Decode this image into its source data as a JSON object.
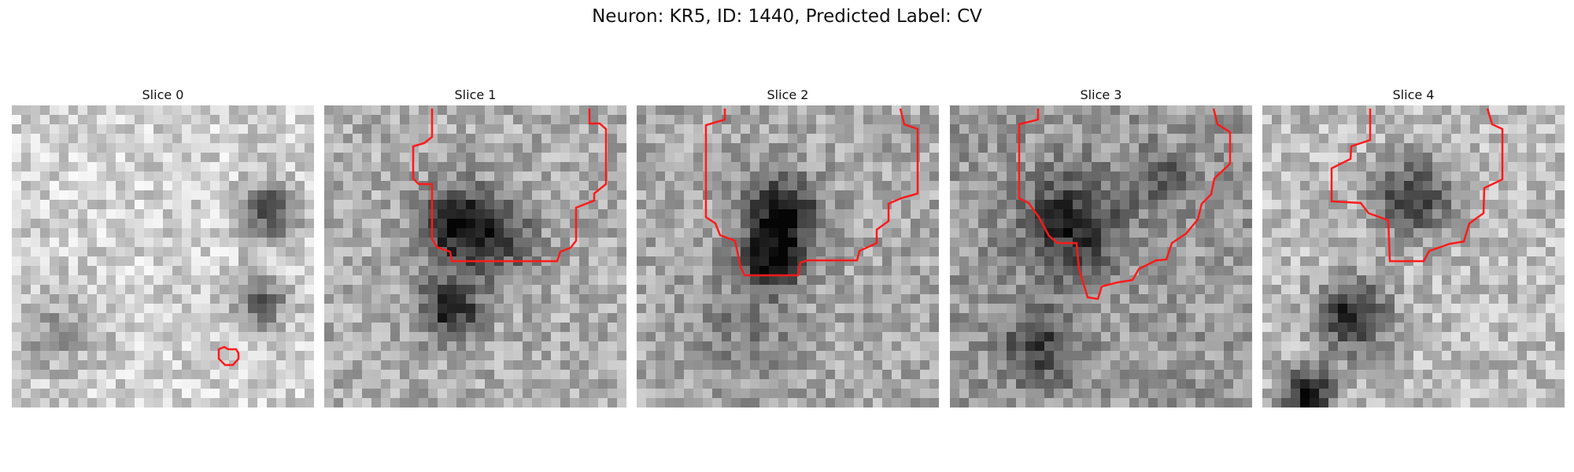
{
  "title": "Neuron: KR5, ID: 1440, Predicted Label: CV",
  "panels": [
    {
      "label": "Slice 0",
      "seed": 11,
      "dark": [
        [
          0.85,
          0.35,
          0.09,
          0.55
        ],
        [
          0.82,
          0.65,
          0.09,
          0.45
        ],
        [
          0.15,
          0.75,
          0.15,
          0.2
        ]
      ],
      "base": 0.82
    },
    {
      "label": "Slice 1",
      "seed": 23,
      "dark": [
        [
          0.45,
          0.4,
          0.13,
          0.6
        ],
        [
          0.42,
          0.67,
          0.1,
          0.55
        ],
        [
          0.6,
          0.45,
          0.12,
          0.3
        ]
      ],
      "base": 0.68
    },
    {
      "label": "Slice 2",
      "seed": 37,
      "dark": [
        [
          0.48,
          0.36,
          0.12,
          0.65
        ],
        [
          0.45,
          0.52,
          0.09,
          0.55
        ],
        [
          0.35,
          0.72,
          0.2,
          0.15
        ]
      ],
      "base": 0.66
    },
    {
      "label": "Slice 3",
      "seed": 51,
      "dark": [
        [
          0.4,
          0.4,
          0.16,
          0.45
        ],
        [
          0.3,
          0.8,
          0.12,
          0.35
        ],
        [
          0.7,
          0.25,
          0.1,
          0.25
        ]
      ],
      "base": 0.6
    },
    {
      "label": "Slice 4",
      "seed": 67,
      "dark": [
        [
          0.3,
          0.7,
          0.12,
          0.6
        ],
        [
          0.5,
          0.3,
          0.13,
          0.5
        ],
        [
          0.15,
          0.95,
          0.08,
          0.7
        ]
      ],
      "base": 0.74
    }
  ]
}
